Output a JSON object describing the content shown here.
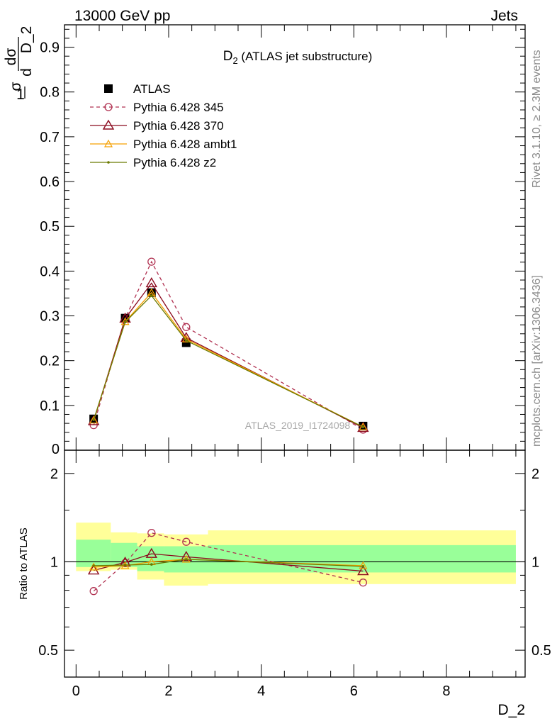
{
  "header": {
    "left": "13000 GeV pp",
    "right": "Jets"
  },
  "side_labels": {
    "rivet": "Rivet 3.1.10, ≥ 2.3M events",
    "mcplots": "mcplots.cern.ch [arXiv:1306.3436]"
  },
  "watermark": "ATLAS_2019_I1724098",
  "colors": {
    "atlas": "#000000",
    "p345": "#b03050",
    "p370": "#8b0a1e",
    "ambt1": "#f5a000",
    "z2": "#6b7a00",
    "band_outer": "#ffff99",
    "band_inner": "#99ff99"
  },
  "chart_data": [
    {
      "type": "line",
      "title": "D_2 (ATLAS jet substructure)",
      "title_main": "D",
      "title_sub": "2",
      "title_rest": " (ATLAS jet substructure)",
      "xlabel": "D_2",
      "ylabel": "1/σ dσ/d D_2",
      "ylabel_parts": {
        "one": "1",
        "sigma": "σ",
        "dsigma": "dσ",
        "d": "d",
        "var": "D_2"
      },
      "xlim": [
        -0.25,
        9.7
      ],
      "ylim": [
        0,
        0.95
      ],
      "yticks": [
        {
          "v": 0.1,
          "label": "0.1"
        },
        {
          "v": 0.2,
          "label": "0.2"
        },
        {
          "v": 0.3,
          "label": "0.3"
        },
        {
          "v": 0.4,
          "label": "0.4"
        },
        {
          "v": 0.5,
          "label": "0.5"
        },
        {
          "v": 0.6,
          "label": "0.6"
        },
        {
          "v": 0.7,
          "label": "0.7"
        },
        {
          "v": 0.8,
          "label": "0.8"
        },
        {
          "v": 0.9,
          "label": "0.9"
        }
      ],
      "y_zero_label": "0",
      "x": [
        0.38,
        1.06,
        1.63,
        2.38,
        6.2
      ],
      "series": [
        {
          "name": "ATLAS",
          "key": "atlas",
          "values": [
            0.07,
            0.295,
            0.352,
            0.24,
            0.054
          ]
        },
        {
          "name": "Pythia 6.428 345",
          "key": "p345",
          "values": [
            0.056,
            0.294,
            0.421,
            0.275,
            0.046
          ]
        },
        {
          "name": "Pythia 6.428 370",
          "key": "p370",
          "values": [
            0.065,
            0.294,
            0.373,
            0.251,
            0.05
          ]
        },
        {
          "name": "Pythia 6.428 ambt1",
          "key": "ambt1",
          "values": [
            0.067,
            0.287,
            0.352,
            0.248,
            0.052
          ]
        },
        {
          "name": "Pythia 6.428 z2",
          "key": "z2",
          "values": [
            0.068,
            0.286,
            0.345,
            0.245,
            0.052
          ]
        }
      ]
    },
    {
      "type": "line",
      "ylabel": "Ratio to ATLAS",
      "ylim": [
        0.405,
        2.4
      ],
      "ylog": true,
      "yticks": [
        {
          "v": 0.5,
          "label": "0.5"
        },
        {
          "v": 1,
          "label": "1"
        },
        {
          "v": 2,
          "label": "2"
        }
      ],
      "xticks": [
        {
          "v": 0,
          "label": "0"
        },
        {
          "v": 2,
          "label": "2"
        },
        {
          "v": 4,
          "label": "4"
        },
        {
          "v": 6,
          "label": "6"
        },
        {
          "v": 8,
          "label": "8"
        }
      ],
      "bands": [
        {
          "x0": 0,
          "x1": 0.75,
          "outer": [
            0.93,
            1.36
          ],
          "inner": [
            0.96,
            1.19
          ]
        },
        {
          "x0": 0.75,
          "x1": 1.32,
          "outer": [
            0.94,
            1.26
          ],
          "inner": [
            0.96,
            1.16
          ]
        },
        {
          "x0": 1.32,
          "x1": 1.9,
          "outer": [
            0.87,
            1.25
          ],
          "inner": [
            0.93,
            1.13
          ]
        },
        {
          "x0": 1.9,
          "x1": 2.85,
          "outer": [
            0.83,
            1.24
          ],
          "inner": [
            0.92,
            1.13
          ]
        },
        {
          "x0": 2.85,
          "x1": 9.5,
          "outer": [
            0.84,
            1.28
          ],
          "inner": [
            0.92,
            1.14
          ]
        }
      ],
      "x": [
        0.38,
        1.06,
        1.63,
        2.38,
        6.2
      ],
      "series": [
        {
          "name": "Pythia 6.428 345",
          "key": "p345",
          "values": [
            0.795,
            0.99,
            1.255,
            1.17,
            0.85
          ]
        },
        {
          "name": "Pythia 6.428 370",
          "key": "p370",
          "values": [
            0.935,
            0.995,
            1.065,
            1.04,
            0.93
          ]
        },
        {
          "name": "Pythia 6.428 ambt1",
          "key": "ambt1",
          "values": [
            0.96,
            0.97,
            1.0,
            1.02,
            0.97
          ]
        },
        {
          "name": "Pythia 6.428 z2",
          "key": "z2",
          "values": [
            0.97,
            0.975,
            0.98,
            1.02,
            0.965
          ]
        }
      ]
    }
  ]
}
